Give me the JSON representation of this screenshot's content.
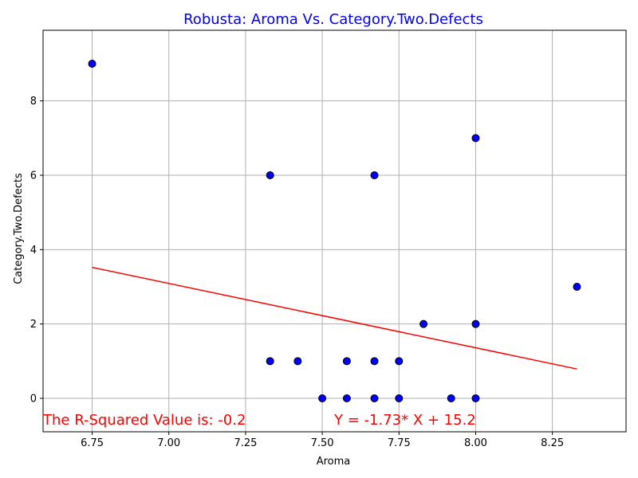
{
  "chart_data": {
    "type": "scatter",
    "title": "Robusta: Aroma Vs. Category.Two.Defects",
    "xlabel": "Aroma",
    "ylabel": "Category.Two.Defects",
    "xlim": [
      6.59,
      8.49
    ],
    "ylim": [
      -0.9,
      9.9
    ],
    "xticks": [
      6.75,
      7.0,
      7.25,
      7.5,
      7.75,
      8.0,
      8.25
    ],
    "xtick_labels": [
      "6.75",
      "7.00",
      "7.25",
      "7.50",
      "7.75",
      "8.00",
      "8.25"
    ],
    "yticks": [
      0,
      2,
      4,
      6,
      8
    ],
    "ytick_labels": [
      "0",
      "2",
      "4",
      "6",
      "8"
    ],
    "grid": true,
    "points": [
      {
        "x": 6.75,
        "y": 9
      },
      {
        "x": 7.33,
        "y": 6
      },
      {
        "x": 7.67,
        "y": 6
      },
      {
        "x": 8.0,
        "y": 7
      },
      {
        "x": 8.33,
        "y": 3
      },
      {
        "x": 7.83,
        "y": 2
      },
      {
        "x": 8.0,
        "y": 2
      },
      {
        "x": 7.33,
        "y": 1
      },
      {
        "x": 7.42,
        "y": 1
      },
      {
        "x": 7.58,
        "y": 1
      },
      {
        "x": 7.67,
        "y": 1
      },
      {
        "x": 7.75,
        "y": 1
      },
      {
        "x": 7.5,
        "y": 0
      },
      {
        "x": 7.58,
        "y": 0
      },
      {
        "x": 7.67,
        "y": 0
      },
      {
        "x": 7.75,
        "y": 0
      },
      {
        "x": 7.92,
        "y": 0
      },
      {
        "x": 8.0,
        "y": 0
      }
    ],
    "regression": {
      "slope": -1.73,
      "intercept": 15.2,
      "x_range": [
        6.75,
        8.33
      ]
    },
    "annotations": {
      "r_squared": "The R-Squared Value is: -0.2",
      "equation": "Y = -1.73* X + 15.2"
    },
    "colors": {
      "title": "#0000ff",
      "point_fill": "#0000ff",
      "point_edge": "#000000",
      "regression": "#ff0000",
      "annotation": "#ff0000",
      "grid": "#b0b0b0"
    }
  }
}
